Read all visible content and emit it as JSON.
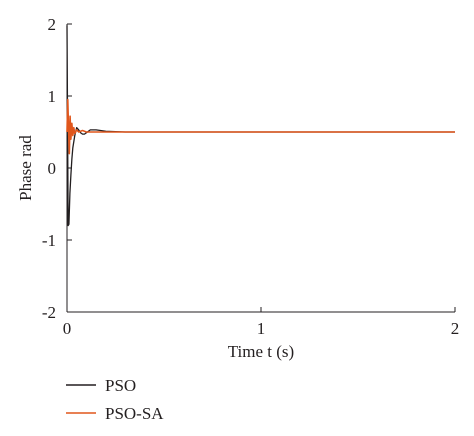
{
  "chart_data": {
    "type": "line",
    "title": "",
    "xlabel": "Time t (s)",
    "ylabel": "Phase rad",
    "xlim": [
      0,
      2
    ],
    "ylim": [
      -2,
      2
    ],
    "xticks": [
      0,
      1,
      2
    ],
    "yticks": [
      -2,
      -1,
      0,
      1,
      2
    ],
    "xtick_labels": [
      "0",
      "1",
      "2"
    ],
    "ytick_labels": [
      "-2",
      "-1",
      "0",
      "1",
      "2"
    ],
    "grid": false,
    "legend_position": "bottom-left",
    "series": [
      {
        "name": "PSO",
        "color": "#231f20",
        "x": [
          0,
          0.003,
          0.006,
          0.01,
          0.015,
          0.02,
          0.025,
          0.03,
          0.04,
          0.05,
          0.06,
          0.07,
          0.08,
          0.09,
          0.1,
          0.12,
          0.15,
          0.2,
          0.3,
          0.4,
          0.6,
          1.0,
          1.5,
          2.0
        ],
        "y": [
          1.98,
          0.6,
          -0.8,
          -0.78,
          -0.35,
          -0.1,
          0.12,
          0.28,
          0.45,
          0.56,
          0.53,
          0.49,
          0.47,
          0.47,
          0.49,
          0.53,
          0.53,
          0.51,
          0.5,
          0.5,
          0.5,
          0.5,
          0.5,
          0.5
        ]
      },
      {
        "name": "PSO-SA",
        "color": "#e0561c",
        "x": [
          0,
          0.004,
          0.008,
          0.012,
          0.016,
          0.02,
          0.025,
          0.03,
          0.035,
          0.04,
          0.05,
          0.06,
          0.08,
          0.1,
          0.15,
          0.2,
          0.4,
          1.0,
          1.5,
          2.0
        ],
        "y": [
          0.5,
          0.95,
          0.55,
          0.2,
          0.72,
          0.4,
          0.62,
          0.45,
          0.56,
          0.48,
          0.53,
          0.5,
          0.52,
          0.5,
          0.5,
          0.5,
          0.5,
          0.5,
          0.5,
          0.5
        ]
      }
    ]
  }
}
